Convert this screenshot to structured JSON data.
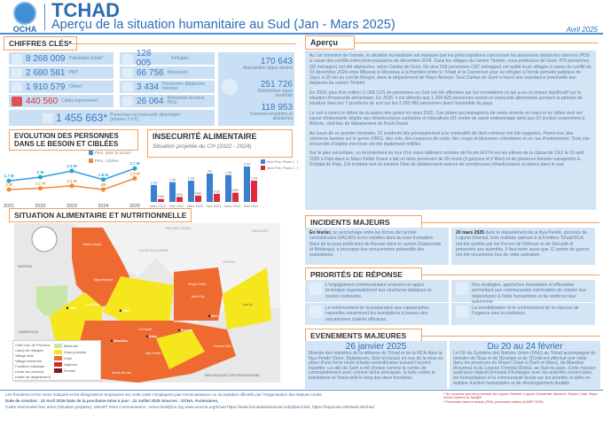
{
  "header": {
    "org": "OCHA",
    "title": "TCHAD",
    "subtitle": "Aperçu de la situation humanitaire au Sud (Jan - Mars 2025)",
    "date": "Avril 2025"
  },
  "key_figures": {
    "title": "CHIFFRES CLÉS*",
    "col1": [
      {
        "value": "8 268 009",
        "label": "Population totale*",
        "icon": "people-icon"
      },
      {
        "value": "2 680 581",
        "label": "PIN*",
        "icon": "people-group-icon"
      },
      {
        "value": "1 910 579",
        "label": "Cibles*",
        "icon": "people-target-icon"
      },
      {
        "value": "440 560",
        "label": "Cibles reprorisées*",
        "icon": "people-priority-icon",
        "color": "#e03030"
      }
    ],
    "col2": [
      {
        "value": "128 005",
        "label": "Réfugiés",
        "icon": "refugee-icon"
      },
      {
        "value": "66 756",
        "label": "Retournés",
        "icon": "returnee-icon"
      },
      {
        "value": "3 434",
        "label": "Personnes déplacées internes",
        "icon": "idp-icon"
      },
      {
        "value": "26 064",
        "label": "Retournés Anciens PDIs",
        "icon": "returnee-idp-icon"
      }
    ],
    "col3": [
      {
        "value": "170 643",
        "label": "Malnutrition aigue sévère"
      },
      {
        "value": "251 726",
        "label": "Malnutrition aigue modérée"
      },
      {
        "value": "118 953",
        "label": "Femmes enceintes et allaitantes"
      }
    ],
    "food": {
      "value": "1 455 663*",
      "label": "Personnes en insécurité alimentaire (phases 3 à 5)",
      "icon": "food-bowl-icon"
    }
  },
  "chart_data": [
    {
      "type": "line",
      "title": "EVOLUTION DES PERSONNES DANS LE BESOIN ET CIBLÉES",
      "categories": [
        "2021",
        "2022",
        "2023",
        "2024",
        "2025"
      ],
      "series": [
        {
          "name": "Pers. dans le besoin",
          "values": [
            1.7,
            2,
            2.5,
            1.8,
            2.7
          ],
          "labels": [
            "1.7 M",
            "2 M",
            "2.5 M",
            "1.8 M",
            "2.7 M"
          ],
          "color": "#2a9fd8"
        },
        {
          "name": "Pers. Ciblées",
          "values": [
            1,
            1.1,
            1.3,
            1,
            1.9
          ],
          "labels": [
            "1 M",
            "1.1 M",
            "1.3 M",
            "1M",
            "1.9 M"
          ],
          "color": "#f08a30"
        }
      ]
    },
    {
      "type": "bar",
      "title": "INSECURITÉ ALIMENTAIRE",
      "subtitle": "Situation projetée du CH (2022 - 2024)",
      "categories": [
        "Mars 2022",
        "Nov 2022",
        "Mars 2023",
        "Nov 2023",
        "Mars 2024",
        "Nov 2024"
      ],
      "series": [
        {
          "name": "Nbre Pers. Phase 2 - 5",
          "values": [
            1.2,
            1.4,
            1.5,
            2,
            1.9,
            2.5
          ],
          "labels": [
            "1.2M",
            "1.4M",
            "1.5M",
            "2M",
            "1.9M",
            "2.5M"
          ],
          "color": "#3a7fd0"
        },
        {
          "name": "Nbre Pers. Phase 3 - 5",
          "values": [
            0.206,
            0.352,
            0.446,
            0.573,
            0.648,
            1.5
          ],
          "labels": [
            "206K",
            "352K",
            "446K",
            "573K",
            "648K",
            "1.5M"
          ],
          "color": "#e02a3a"
        }
      ]
    }
  ],
  "map": {
    "title": "SITUATION ALIMENTAIRE ET NUTRITIONNELLE",
    "countries": [
      "NIGERIA",
      "CAMEROUN",
      "REPUBLIQUE CENTRAFRICAINE"
    ],
    "regions": [
      "HADJER LAMIS",
      "CHARI BAGUIRMI",
      "GUERA",
      "SALAMAT"
    ],
    "provinces": [
      "Mayo Lemyé",
      "Mayo Boneye",
      "Moyen Chari",
      "Barh Kôh",
      "La Kabbia",
      "Mandoul Oriental",
      "La Pendé",
      "Grande Sido",
      "Monts de Lam",
      "Nya Pendé",
      "Lac Iro"
    ],
    "towns": [
      "Pala",
      "Kélo",
      "Moundou",
      "Doba",
      "Sarh",
      "Koumra"
    ],
    "legend": {
      "symbols": [
        "Chef-Lieu de Province",
        "Camp de réfugiés",
        "Village hôte",
        "Village retournés",
        "Frontière nationale",
        "Limite de province",
        "Limite de département"
      ],
      "phases": [
        {
          "label": "Minimale",
          "color": "#c8e6a8"
        },
        {
          "label": "Sous pression",
          "color": "#f5e61e"
        },
        {
          "label": "Crise",
          "color": "#ee6a30"
        },
        {
          "label": "Urgence",
          "color": "#d42a2a"
        },
        {
          "label": "Famine",
          "color": "#7a1a1a"
        }
      ]
    }
  },
  "apercu": {
    "title": "Aperçu",
    "paragraphs": [
      "Au 1er trimestre de l'année, la situation humanitaire est marquée par les préoccupations concernant les personnes déplacées internes (PDI) à cause des conflits intercommunautaires de décembre 2024. Dans les villages du canton Timbéri, sous-préfecture de Goré, 476 personnes (82 ménages) ont été déplacées, selon Caritas de Goré. De plus 518 personnes (157 ménages) ont quitté leurs villages à cause du conflit du 03 décembre 2024 entre Mbassa et Moussey à la frontière entre le Tchad et le Cameroun pour se réfugier à l'école primaire publique de Zigui, à 35 km au sud de Bongor, dans le département de Mayo Boneye. Seul Caritas de Goré a fourni une assistance ponctuelle aux déplacés du canton Timbéri.",
      "En 2024, plus d'un million (1 068 122) de personnes au Sud ont été affectées par les inondations ce qui a eu un impact significatif sur la situation d'insécurité alimentaire. En 2025, il est attendu que 1 394 828 personnes seront en insécurité alimentaire pendant la période de soudure dans les 7 provinces du sud sur les 3 283 882 personnes dans l'ensemble du pays.",
      "Le sud a connu le début de la saison des pluies en mars 2025. Ces pluies accompagnées de vents violents en mars et en début avril ont causé d'importants dégâts aux infrastructures sanitaires et éducatives (01 centre de santé endommagé ainsi que 02 écoles) notamment à Béboto, chef-lieu de département de Kouh-Ouest.",
      "Au cours de ce premier trimestre, 21 incidents liés principalement à la criminalité de droit commun ont été rapportés. Parmi eux, des violences basées sur le genre (VBG), des vols, des coupeurs de route, des coups et blessures volontaires et un cas d'enlèvement. Trois cas d'incendie d'origine inconnue ont été également notifiés.",
      "Sur le plan sécuritaire, un écroulement du mur d'un vieux bâtiment scolaire de l'école EGTH sur les élèves de la classe de CE2 le 03 avril 2025 à Pala dans le Mayo Kebbi Ouest a fait un bilan provisoire de 05 morts (3 garçons et 2 filles) et de plusieurs blessés transportés à l'hôpital de Pala. Cet incident met en lumière l'état de délabrement avancé de nombreuses infrastructures scolaires dans le sud."
    ]
  },
  "incidents": {
    "title": "INCIDENTS MAJEURS",
    "items": [
      {
        "lead": "En février,",
        "text": " un accrochage entre les forces de l'armée centrafricaine (FACAS) et les rebelles dans la zone frontalière (face de la sous-préfecture de Bessao dans le canton Oudoumian et Bédanga), a provoqué des mouvements préventifs des populations."
      },
      {
        "lead": "20 mars 2025",
        "text": " dans le département de la Nya Pendé, province du Logone Oriental, trois malfrats opérant à la frontière Tchad-RCA ont été arrêtés par les Forces de Défense et de Sécurité et présentés aux autorités. Il faut noter aussi que 12 armes de guerre ont été récupérées lors de cette opération."
      }
    ]
  },
  "priorities": {
    "title": "PRIORITÉS DE RÉPONSE",
    "items": [
      {
        "text": "L'engagement communautaire à travers un appui technique organisationnel aux structures étatiques et locales existantes.",
        "icon": "heart-hands-icon"
      },
      {
        "text": "Des stratégies, approches innovantes et efficientes permettant aux communautés vulnérables de réduire leur dépendance à l'aide humanitaire et de renforcer leur autonomie.",
        "icon": "arrows-icon"
      },
      {
        "text": "Le renforcement de la préparation aux catastrophes naturelles notamment les inondations à travers des mécanismes d'alerte efficaces.",
        "icon": "heart-hands-icon"
      },
      {
        "text": "La sensibilisation et le renforcement de la réponse de l'urgence vers la résilience.",
        "icon": "arrows-icon"
      }
    ]
  },
  "events": {
    "title": "EVENEMENTS MAJEURES",
    "items": [
      {
        "date": "26 janvier 2025",
        "text": "Mission des ministres de la défense du Tchad et de la RCA dans la Nya Pendé (Gore, Baibokoum, Sido et Haraz) en vue de la mise en place d'une force mixte tchado-centrafricaine suivant l'accord tripartite. La ville de Sarh a été choisie comme le centre de commandement avec comme tâche principale, la lutte contre le banditisme et l'insécurité le long des deux frontières."
      },
      {
        "date": "Du 20 au 24 février",
        "text": "Le CH du Système des Nations Unies (SNU) au Tchad accompagné du ministre de l'Eau et de l'Energie et de OCHA ont effectué une visite dans les provinces du Moyen Chari à (Sarh et Maro), du Mandoul (Koumra) et du Logone Oriental (Doba), au Sud du pays. Cette mission avait pour objectif principal d'échanger avec les autorités provinciales, les humanitaires et la communauté locale sur les priorités et défis en matière d'action humanitaire et de développement durable."
      }
    ]
  },
  "footer": {
    "disclaimer": "Les frontières et les noms indiqués et les désignations employées sur cette carte n'impliquent pas reconnaissance ou acceptation officielle par l'Organisation des Nations Unies.",
    "line2": "Date de création : 22 Avril 2025  Date de la prochaine mise à jour : 22 Juillet 2025  Sources : OCHA, Partenaires,",
    "line3": "Cadre Harmonisé Nov 2024 (Situation projetée), SMART 2024 Commentaires : ocha-chad@un.org    www.unocha.org/tchad    https://www.humanitarianaction.info/plan/1192,    https://response.reliefweb.int/chad",
    "note1": "* Ne concerne que les provinces du Logone Oriental, Logone Occidental, Mandoul, Moyen Chari, Mayo Kebbi Ouest et la Tandjilé",
    "note2": "* Personnes dans le besoin (PIN), personnes ciblées (HNRP 2025)"
  }
}
